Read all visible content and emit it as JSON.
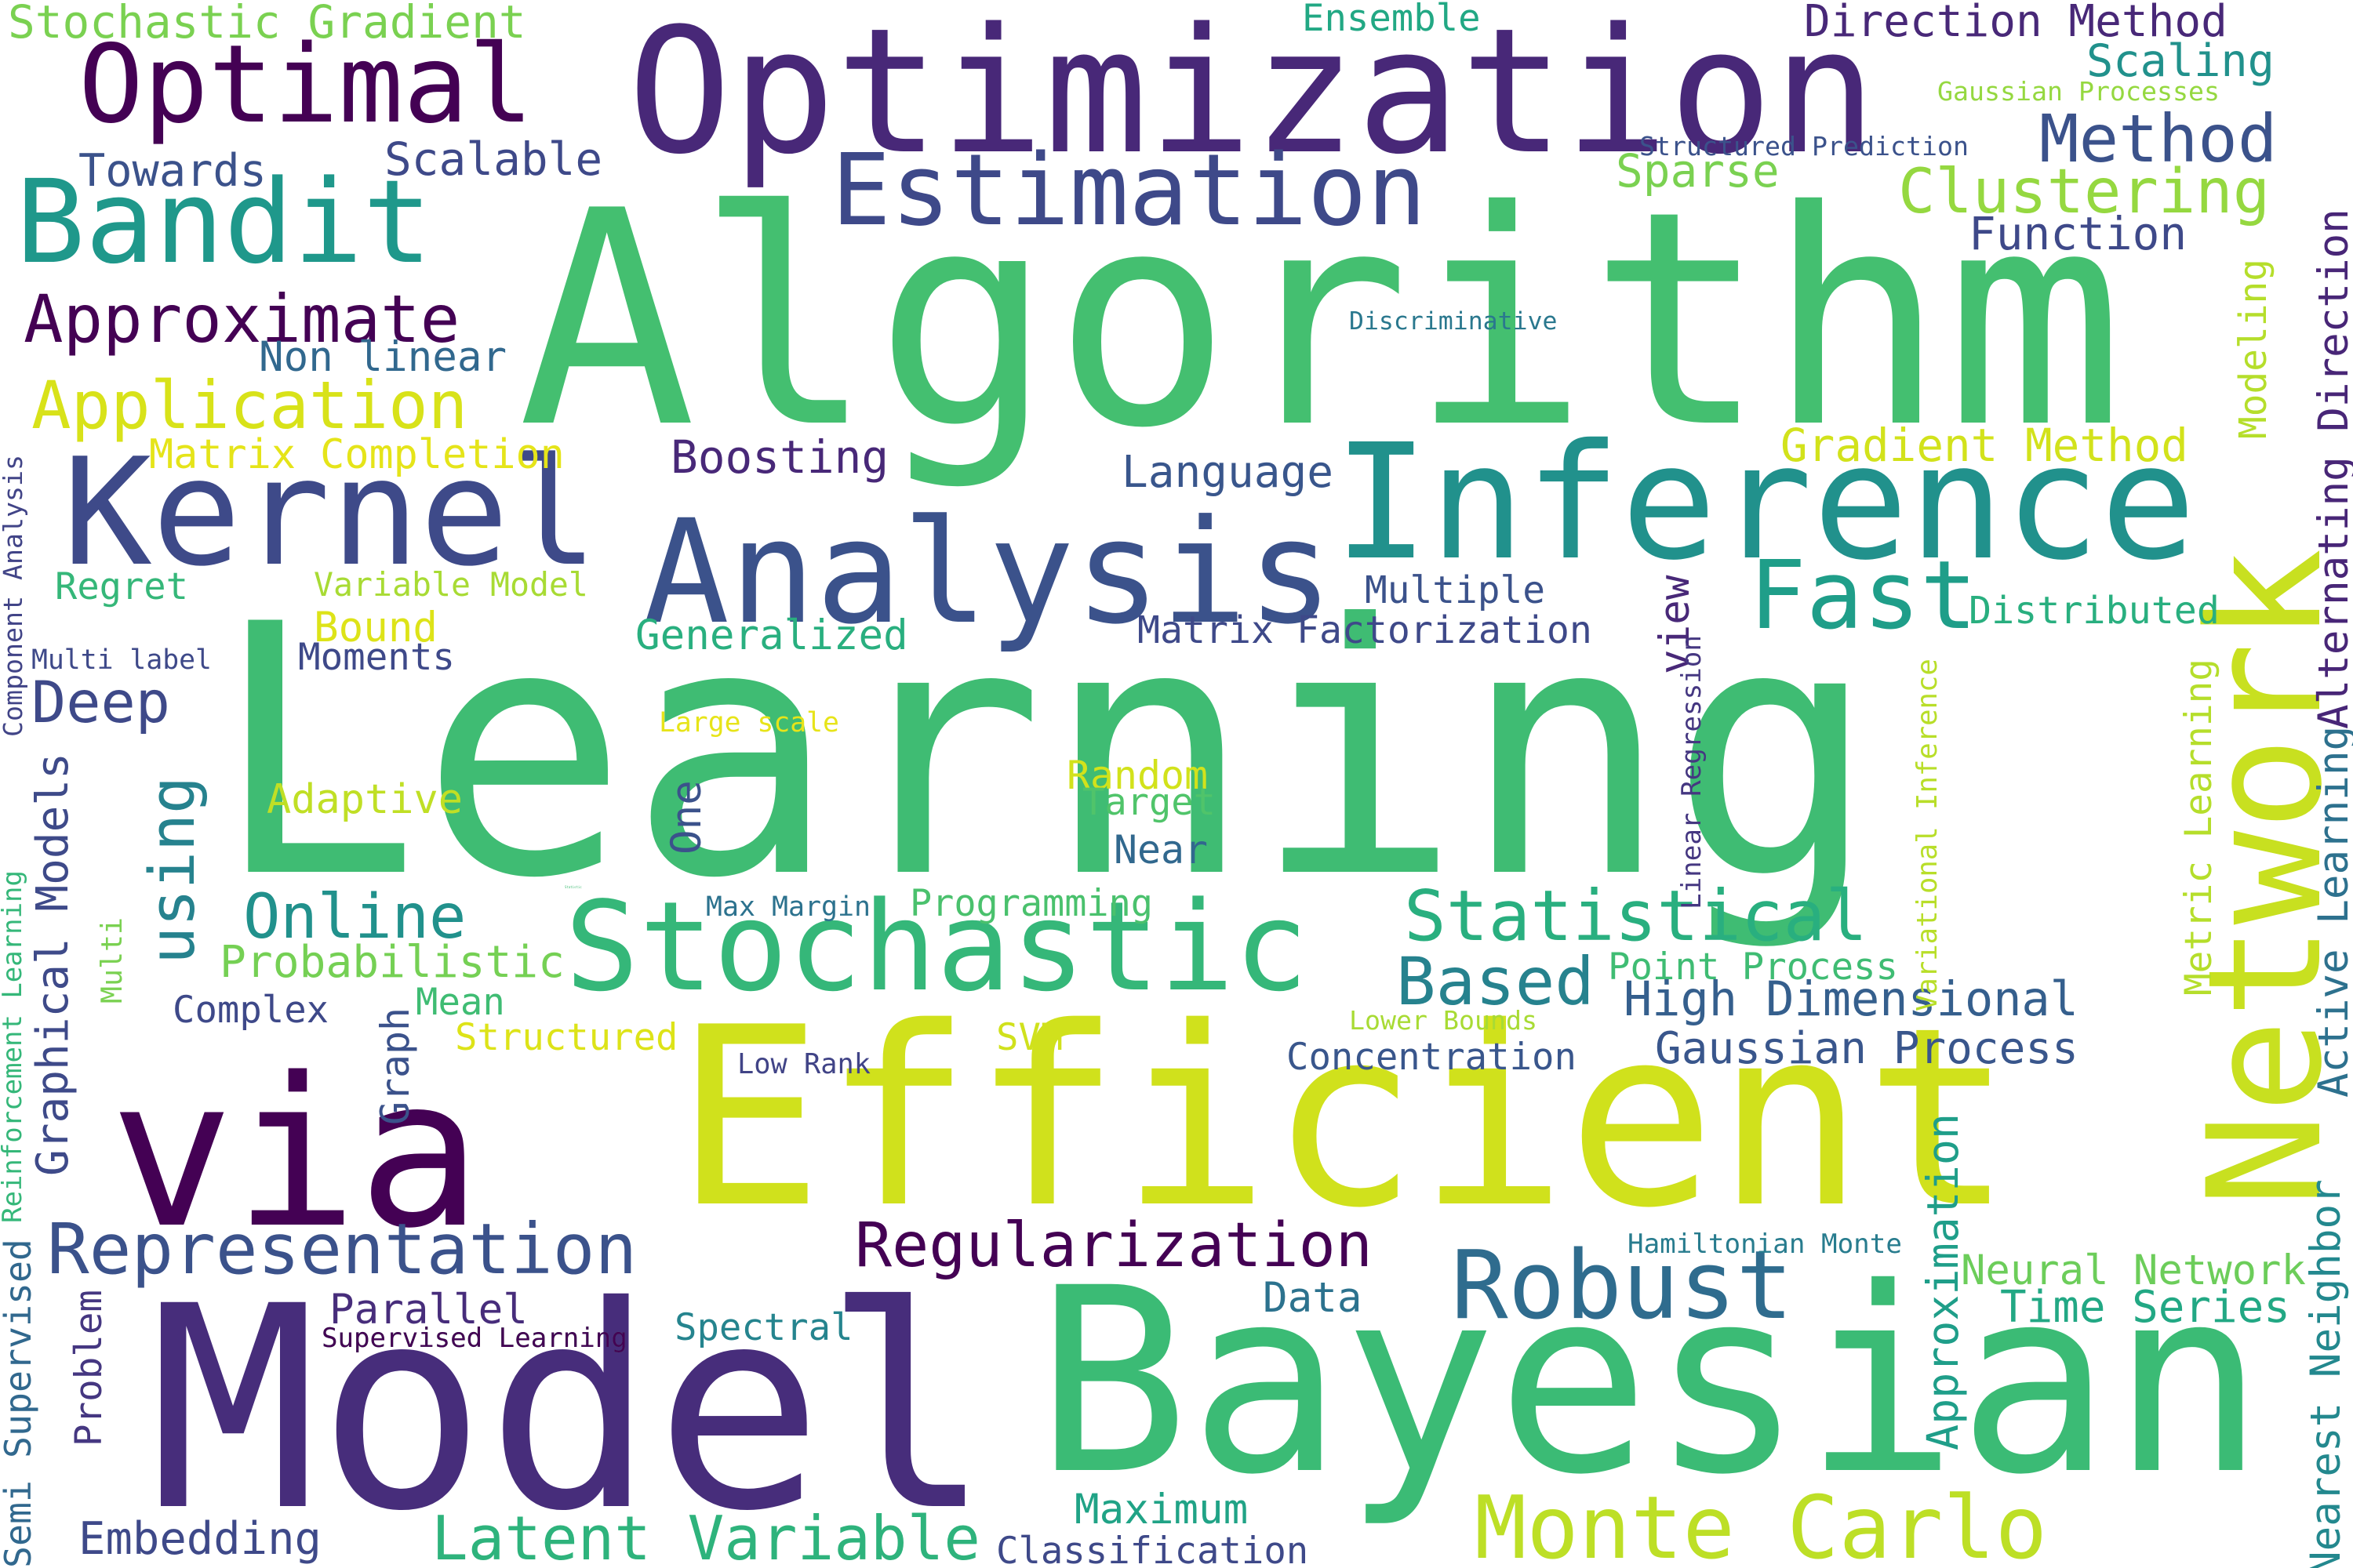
{
  "words": [
    {
      "text": "Learning",
      "color": "#3fbc73"
    },
    {
      "text": "Algorithm",
      "color": "#44bf70"
    },
    {
      "text": "Optimization",
      "color": "#482878"
    },
    {
      "text": "Model",
      "color": "#472d7b"
    },
    {
      "text": "Bayesian",
      "color": "#3bbb75"
    },
    {
      "text": "Efficient",
      "color": "#d0e11c"
    },
    {
      "text": "via",
      "color": "#440154"
    },
    {
      "text": "Inference",
      "color": "#21918c"
    },
    {
      "text": "Analysis",
      "color": "#3b528b"
    },
    {
      "text": "Kernel",
      "color": "#3e4a89"
    },
    {
      "text": "Network",
      "color": "#c8e020"
    },
    {
      "text": "Stochastic",
      "color": "#35b779"
    },
    {
      "text": "Bandit",
      "color": "#1f988b"
    },
    {
      "text": "Optimal",
      "color": "#440154"
    },
    {
      "text": "Estimation",
      "color": "#3e4989"
    },
    {
      "text": "Monte Carlo",
      "color": "#bddf26"
    },
    {
      "text": "Representation",
      "color": "#3b528b"
    },
    {
      "text": "Robust",
      "color": "#2f6c8e"
    },
    {
      "text": "Fast",
      "color": "#1f9e89"
    },
    {
      "text": "Statistical",
      "color": "#29af7f"
    },
    {
      "text": "Latent Variable",
      "color": "#2eb37c"
    },
    {
      "text": "Clustering",
      "color": "#95d840"
    },
    {
      "text": "Method",
      "color": "#3b528b"
    },
    {
      "text": "Approximate",
      "color": "#440154"
    },
    {
      "text": "Application",
      "color": "#d8e219"
    },
    {
      "text": "Deep",
      "color": "#3e4989"
    },
    {
      "text": "Online",
      "color": "#21918c"
    },
    {
      "text": "Based",
      "color": "#26828e"
    },
    {
      "text": "Regularization",
      "color": "#440154"
    },
    {
      "text": "High Dimensional",
      "color": "#355f8d"
    },
    {
      "text": "Gaussian Process",
      "color": "#39568c"
    },
    {
      "text": "Statistic",
      "color": "#3fbc73"
    },
    {
      "text": "Probabilistic",
      "color": "#75d054"
    },
    {
      "text": "Alternating Direction",
      "color": "#482677"
    },
    {
      "text": "Active Learning",
      "color": "#2d718e"
    },
    {
      "text": "Nearest Neighbor",
      "color": "#23888e"
    },
    {
      "text": "Approximation",
      "color": "#1f9e89"
    },
    {
      "text": "Graphical Models",
      "color": "#3e4a89"
    },
    {
      "text": "using",
      "color": "#26828e"
    },
    {
      "text": "Scaling",
      "color": "#21918c"
    },
    {
      "text": "Stochastic Gradient",
      "color": "#7ad151"
    },
    {
      "text": "Direction Method",
      "color": "#482878"
    },
    {
      "text": "Ensemble",
      "color": "#22a884"
    },
    {
      "text": "Gaussian Processes",
      "color": "#95d840"
    },
    {
      "text": "Towards",
      "color": "#3b528b"
    },
    {
      "text": "Scalable",
      "color": "#3e4989"
    },
    {
      "text": "Structured Prediction",
      "color": "#3b528b"
    },
    {
      "text": "Sparse",
      "color": "#7ad151"
    },
    {
      "text": "Function",
      "color": "#3e4989"
    },
    {
      "text": "Discriminative",
      "color": "#2a788e"
    },
    {
      "text": "Non linear",
      "color": "#31688e"
    },
    {
      "text": "Modeling",
      "color": "#b5de2b"
    },
    {
      "text": "Matrix Completion",
      "color": "#e5e419"
    },
    {
      "text": "Boosting",
      "color": "#482878"
    },
    {
      "text": "Language",
      "color": "#39568c"
    },
    {
      "text": "Gradient Method",
      "color": "#d2e21b"
    },
    {
      "text": "Component Analysis",
      "color": "#414487"
    },
    {
      "text": "Regret",
      "color": "#35b779"
    },
    {
      "text": "Variable Model",
      "color": "#a8db34"
    },
    {
      "text": "Bound",
      "color": "#dde318"
    },
    {
      "text": "Moments",
      "color": "#3e4989"
    },
    {
      "text": "Multi label",
      "color": "#3e4989"
    },
    {
      "text": "Generalized",
      "color": "#29af7f"
    },
    {
      "text": "Multiple",
      "color": "#3b528b"
    },
    {
      "text": "Matrix Factorization",
      "color": "#3e4989"
    },
    {
      "text": "Distributed",
      "color": "#29af7f"
    },
    {
      "text": "view",
      "color": "#482878"
    },
    {
      "text": "Large scale",
      "color": "#e7e419"
    },
    {
      "text": "One",
      "color": "#3b528b"
    },
    {
      "text": "Linear Regression",
      "color": "#453781"
    },
    {
      "text": "Variational Inference",
      "color": "#b8de29"
    },
    {
      "text": "Metric Learning",
      "color": "#b5de2b"
    },
    {
      "text": "Adaptive",
      "color": "#c0df25"
    },
    {
      "text": "Random",
      "color": "#d2e21b"
    },
    {
      "text": "Target",
      "color": "#50c46a"
    },
    {
      "text": "Near",
      "color": "#31688e"
    },
    {
      "text": "Max Margin",
      "color": "#2c728e"
    },
    {
      "text": "Programming",
      "color": "#4ac16d"
    },
    {
      "text": "Point Process",
      "color": "#3fbc73"
    },
    {
      "text": "Supervised Learning",
      "color": "#4ac16d"
    },
    {
      "text": "Semi Supervised",
      "color": "#31688e"
    },
    {
      "text": "Reinforcement Learning",
      "color": "#35b779"
    },
    {
      "text": "Multi",
      "color": "#7ad151"
    },
    {
      "text": "Complex",
      "color": "#3e4989"
    },
    {
      "text": "Mean",
      "color": "#3fbc73"
    },
    {
      "text": "Graph",
      "color": "#3b528b"
    },
    {
      "text": "Structured",
      "color": "#dde318"
    },
    {
      "text": "SVM",
      "color": "#d0e11c"
    },
    {
      "text": "Low Rank",
      "color": "#414487"
    },
    {
      "text": "Lower Bounds",
      "color": "#a8db34"
    },
    {
      "text": "Concentration",
      "color": "#39568c"
    },
    {
      "text": "Hamiltonian Monte",
      "color": "#287c8e"
    },
    {
      "text": "Neural Network",
      "color": "#6ccd5a"
    },
    {
      "text": "Time Series",
      "color": "#22a884"
    },
    {
      "text": "Parallel",
      "color": "#472d7b"
    },
    {
      "text": "Supervised Learning",
      "color": "#440154"
    },
    {
      "text": "Data",
      "color": "#2c728e"
    },
    {
      "text": "Spectral",
      "color": "#25848e"
    },
    {
      "text": "Problem",
      "color": "#453781"
    },
    {
      "text": "Embedding",
      "color": "#3e4989"
    },
    {
      "text": "Maximum",
      "color": "#20a386"
    },
    {
      "text": "Classification",
      "color": "#3e4989"
    }
  ]
}
